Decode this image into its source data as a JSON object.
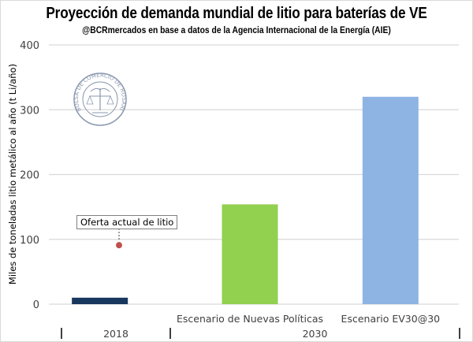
{
  "chart_data": {
    "type": "bar",
    "title": "Proyección de demanda mundial de litio para baterías de VE",
    "subtitle": "@BCRmercados en base a datos de la Agencia Internacional de la Energía (AIE)",
    "xlabel": "",
    "ylabel": "Miles de toneladas litio metálico al año (t Li/año)",
    "ylim": [
      0,
      400
    ],
    "yticks": [
      "0",
      "100",
      "200",
      "300",
      "400"
    ],
    "grid": true,
    "categories": [
      "",
      "Escenario de Nuevas Políticas",
      "Escenario EV30@30"
    ],
    "groups": [
      {
        "label": "2018",
        "span": 1
      },
      {
        "label": "2030",
        "span": 2
      }
    ],
    "values": [
      10,
      154,
      320
    ],
    "colors": [
      "#17375e",
      "#92d050",
      "#8eb4e3"
    ],
    "annotation": {
      "text": "Oferta actual de litio",
      "category_index": 0,
      "value": 91,
      "marker_color": "#c0504d"
    },
    "watermark": "BOLSA DE COMERCIO DE ROSARIO"
  }
}
